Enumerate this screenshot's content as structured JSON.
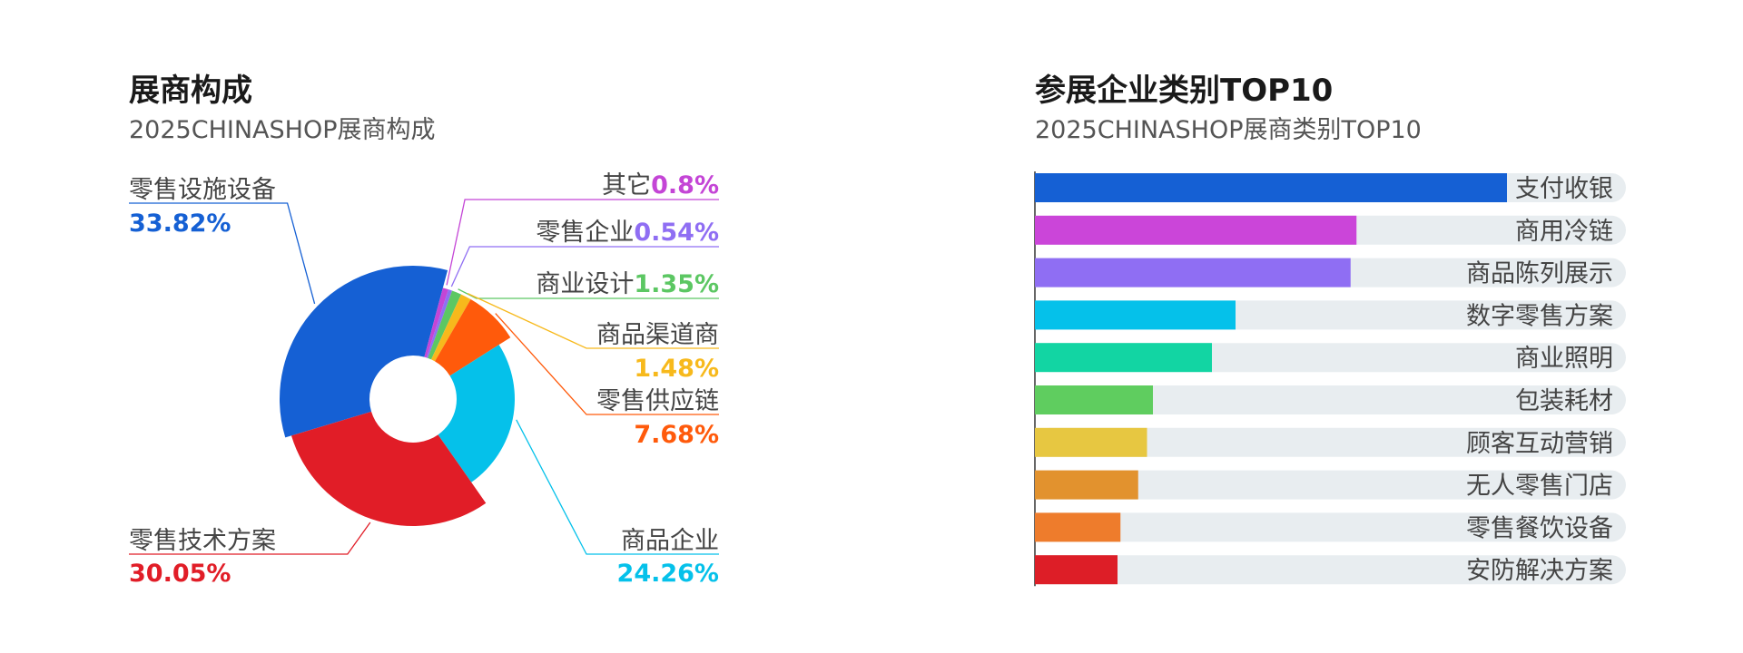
{
  "left": {
    "title": "展商构成",
    "subtitle": "2025CHINASHOP展商构成"
  },
  "right": {
    "title": "参展企业类别TOP10",
    "subtitle": "2025CHINASHOP展商类别TOP10"
  },
  "chart_data": [
    {
      "type": "pie",
      "title": "展商构成",
      "subtitle": "2025CHINASHOP展商构成",
      "slices": [
        {
          "name": "零售设施设备",
          "value": 33.82,
          "label": "33.82%",
          "color": "#1560d4"
        },
        {
          "name": "其它",
          "value": 0.8,
          "label": "0.8%",
          "color": "#c445d6"
        },
        {
          "name": "零售企业",
          "value": 0.54,
          "label": "0.54%",
          "color": "#8f6ef3"
        },
        {
          "name": "商业设计",
          "value": 1.35,
          "label": "1.35%",
          "color": "#5cc763"
        },
        {
          "name": "商品渠道商",
          "value": 1.48,
          "label": "1.48%",
          "color": "#f7b91c"
        },
        {
          "name": "零售供应链",
          "value": 7.68,
          "label": "7.68%",
          "color": "#ff5a0b"
        },
        {
          "name": "商品企业",
          "value": 24.26,
          "label": "24.26%",
          "color": "#05c1ea"
        },
        {
          "name": "零售技术方案",
          "value": 30.05,
          "label": "30.05%",
          "color": "#e11d27"
        }
      ]
    },
    {
      "type": "bar",
      "orientation": "horizontal",
      "title": "参展企业类别TOP10",
      "subtitle": "2025CHINASHOP展商类别TOP10",
      "max": 100,
      "categories": [
        "支付收银",
        "商用冷链",
        "商品陈列展示",
        "数字零售方案",
        "商业照明",
        "包装耗材",
        "顾客互动营销",
        "无人零售门店",
        "零售餐饮设备",
        "安防解决方案"
      ],
      "values": [
        80,
        54.5,
        53.5,
        34,
        30,
        20,
        19,
        17.5,
        14.5,
        14
      ],
      "colors": [
        "#1560d4",
        "#cb45d9",
        "#8f6ef3",
        "#05c1ea",
        "#12d5a3",
        "#5fcd5f",
        "#e7c741",
        "#e2922e",
        "#ee7c2c",
        "#dd1e27"
      ],
      "track_color": "#e8edf0"
    }
  ]
}
